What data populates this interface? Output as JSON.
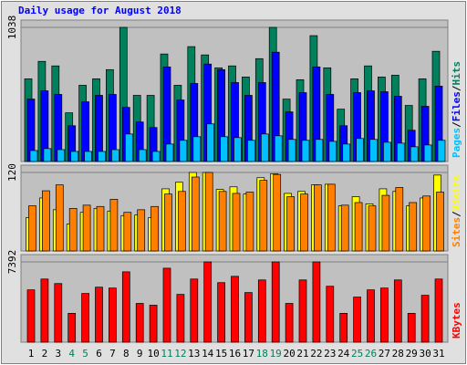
{
  "title": "Daily usage for August 2018",
  "legend_separator": "/",
  "chart_data": [
    {
      "type": "bar",
      "categories": [
        "1",
        "2",
        "3",
        "4",
        "5",
        "6",
        "7",
        "8",
        "9",
        "10",
        "11",
        "12",
        "13",
        "14",
        "15",
        "16",
        "17",
        "18",
        "19",
        "20",
        "21",
        "22",
        "23",
        "24",
        "25",
        "26",
        "27",
        "28",
        "29",
        "30",
        "31"
      ],
      "series": [
        {
          "name": "Hits",
          "color": "#00805c",
          "values": [
            640,
            775,
            740,
            377,
            590,
            640,
            711,
            1038,
            512,
            512,
            832,
            590,
            889,
            825,
            725,
            740,
            654,
            796,
            1038,
            483,
            633,
            974,
            725,
            405,
            640,
            740,
            654,
            668,
            434,
            640,
            853
          ]
        },
        {
          "name": "Files",
          "color": "#0000ff",
          "values": [
            483,
            547,
            519,
            277,
            462,
            512,
            519,
            419,
            306,
            263,
            732,
            476,
            604,
            754,
            711,
            611,
            512,
            611,
            846,
            384,
            533,
            732,
            519,
            277,
            533,
            547,
            540,
            505,
            242,
            427,
            583
          ]
        },
        {
          "name": "Pages",
          "color": "#00c0ff",
          "values": [
            85,
            100,
            92,
            78,
            78,
            78,
            92,
            213,
            92,
            78,
            135,
            164,
            192,
            291,
            192,
            185,
            164,
            213,
            199,
            171,
            164,
            171,
            156,
            135,
            178,
            171,
            149,
            142,
            114,
            128,
            164
          ]
        }
      ],
      "ylim": [
        0,
        1038
      ],
      "yticks": [
        1038
      ]
    },
    {
      "type": "bar",
      "categories": [
        "1",
        "2",
        "3",
        "4",
        "5",
        "6",
        "7",
        "8",
        "9",
        "10",
        "11",
        "12",
        "13",
        "14",
        "15",
        "16",
        "17",
        "18",
        "19",
        "20",
        "21",
        "22",
        "23",
        "24",
        "25",
        "26",
        "27",
        "28",
        "29",
        "30",
        "31"
      ],
      "series": [
        {
          "name": "Visits",
          "color": "#ffff00",
          "values": [
            51,
            81,
            63,
            41,
            59,
            65,
            61,
            54,
            55,
            51,
            95,
            105,
            120,
            120,
            94,
            98,
            87,
            112,
            118,
            88,
            91,
            101,
            102,
            69,
            83,
            72,
            95,
            91,
            69,
            81,
            116
          ]
        },
        {
          "name": "Sites",
          "color": "#ff8000",
          "values": [
            69,
            92,
            101,
            65,
            70,
            68,
            79,
            59,
            63,
            68,
            87,
            91,
            113,
            120,
            91,
            88,
            90,
            108,
            117,
            83,
            87,
            101,
            102,
            70,
            74,
            69,
            85,
            97,
            74,
            84,
            90
          ]
        }
      ],
      "ylim": [
        0,
        120
      ],
      "yticks": [
        120
      ]
    },
    {
      "type": "bar",
      "categories": [
        "1",
        "2",
        "3",
        "4",
        "5",
        "6",
        "7",
        "8",
        "9",
        "10",
        "11",
        "12",
        "13",
        "14",
        "15",
        "16",
        "17",
        "18",
        "19",
        "20",
        "21",
        "22",
        "23",
        "24",
        "25",
        "26",
        "27",
        "28",
        "29",
        "30",
        "31"
      ],
      "category_colors": [
        "#000000",
        "#000000",
        "#000000",
        "#00805c",
        "#00805c",
        "#000000",
        "#000000",
        "#000000",
        "#000000",
        "#000000",
        "#00805c",
        "#00805c",
        "#000000",
        "#000000",
        "#000000",
        "#000000",
        "#000000",
        "#00805c",
        "#00805c",
        "#000000",
        "#000000",
        "#000000",
        "#000000",
        "#000000",
        "#00805c",
        "#00805c",
        "#000000",
        "#000000",
        "#000000",
        "#000000",
        "#000000"
      ],
      "series": [
        {
          "name": "KBytes",
          "color": "#ff0000",
          "values": [
            4817,
            5814,
            5399,
            2658,
            4485,
            5066,
            4983,
            6478,
            3571,
            3405,
            6810,
            4402,
            5814,
            7392,
            5482,
            6063,
            4568,
            5731,
            7392,
            3571,
            5731,
            7392,
            5149,
            2658,
            4153,
            4817,
            4983,
            5731,
            2658,
            4319,
            5814
          ]
        }
      ],
      "ylim": [
        0,
        7392
      ],
      "yticks": [
        7392
      ]
    }
  ]
}
